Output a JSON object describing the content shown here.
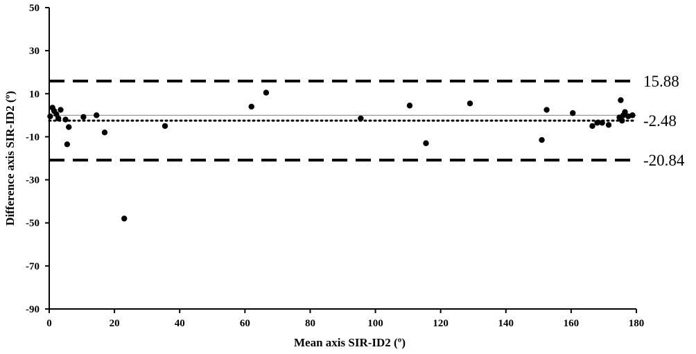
{
  "chart_data": {
    "type": "scatter",
    "title": "",
    "xlabel": "Mean axis SIR-ID2 (º)",
    "ylabel": "Difference axis SIR-ID2 (º)",
    "xlim": [
      0,
      180
    ],
    "ylim": [
      -90,
      50
    ],
    "x_ticks": [
      0,
      20,
      40,
      60,
      80,
      100,
      120,
      140,
      160,
      180
    ],
    "y_ticks": [
      50,
      30,
      10,
      -10,
      -30,
      -50,
      -70,
      -90
    ],
    "grid": false,
    "legend": "none",
    "zero_line": 0,
    "reference_lines": [
      {
        "value": 15.88,
        "label": "15.88",
        "style": "dashed"
      },
      {
        "value": -2.48,
        "label": "-2.48",
        "style": "dotted"
      },
      {
        "value": -20.84,
        "label": "-20.84",
        "style": "dashed"
      }
    ],
    "series": [
      {
        "points": [
          {
            "x": 0.3,
            "y": -0.5
          },
          {
            "x": 1,
            "y": 3.5
          },
          {
            "x": 1.5,
            "y": 2
          },
          {
            "x": 2.2,
            "y": 0.5
          },
          {
            "x": 2.8,
            "y": -1.5
          },
          {
            "x": 3.5,
            "y": 2.5
          },
          {
            "x": 5,
            "y": -2
          },
          {
            "x": 5.5,
            "y": -13.5
          },
          {
            "x": 6,
            "y": -5.5
          },
          {
            "x": 10.5,
            "y": -0.8
          },
          {
            "x": 14.5,
            "y": 0
          },
          {
            "x": 17,
            "y": -8
          },
          {
            "x": 23,
            "y": -48
          },
          {
            "x": 35.5,
            "y": -5
          },
          {
            "x": 62,
            "y": 4
          },
          {
            "x": 66.5,
            "y": 10.5
          },
          {
            "x": 95.5,
            "y": -1.5
          },
          {
            "x": 110.5,
            "y": 4.5
          },
          {
            "x": 115.5,
            "y": -13
          },
          {
            "x": 129,
            "y": 5.5
          },
          {
            "x": 151,
            "y": -11.5
          },
          {
            "x": 152.5,
            "y": 2.5
          },
          {
            "x": 160.5,
            "y": 1
          },
          {
            "x": 166.5,
            "y": -5
          },
          {
            "x": 168,
            "y": -3.5
          },
          {
            "x": 169.5,
            "y": -3.5
          },
          {
            "x": 171.5,
            "y": -4.5
          },
          {
            "x": 174.8,
            "y": -1
          },
          {
            "x": 175.2,
            "y": 7
          },
          {
            "x": 175.6,
            "y": -2.5
          },
          {
            "x": 176,
            "y": 0
          },
          {
            "x": 176.5,
            "y": 1.5
          },
          {
            "x": 177.5,
            "y": -0.5
          },
          {
            "x": 178.8,
            "y": 0
          }
        ]
      }
    ]
  },
  "colors": {
    "axis": "#000000",
    "points": "#000000",
    "zero_line": "#808080",
    "reference_lines": "#000000"
  }
}
